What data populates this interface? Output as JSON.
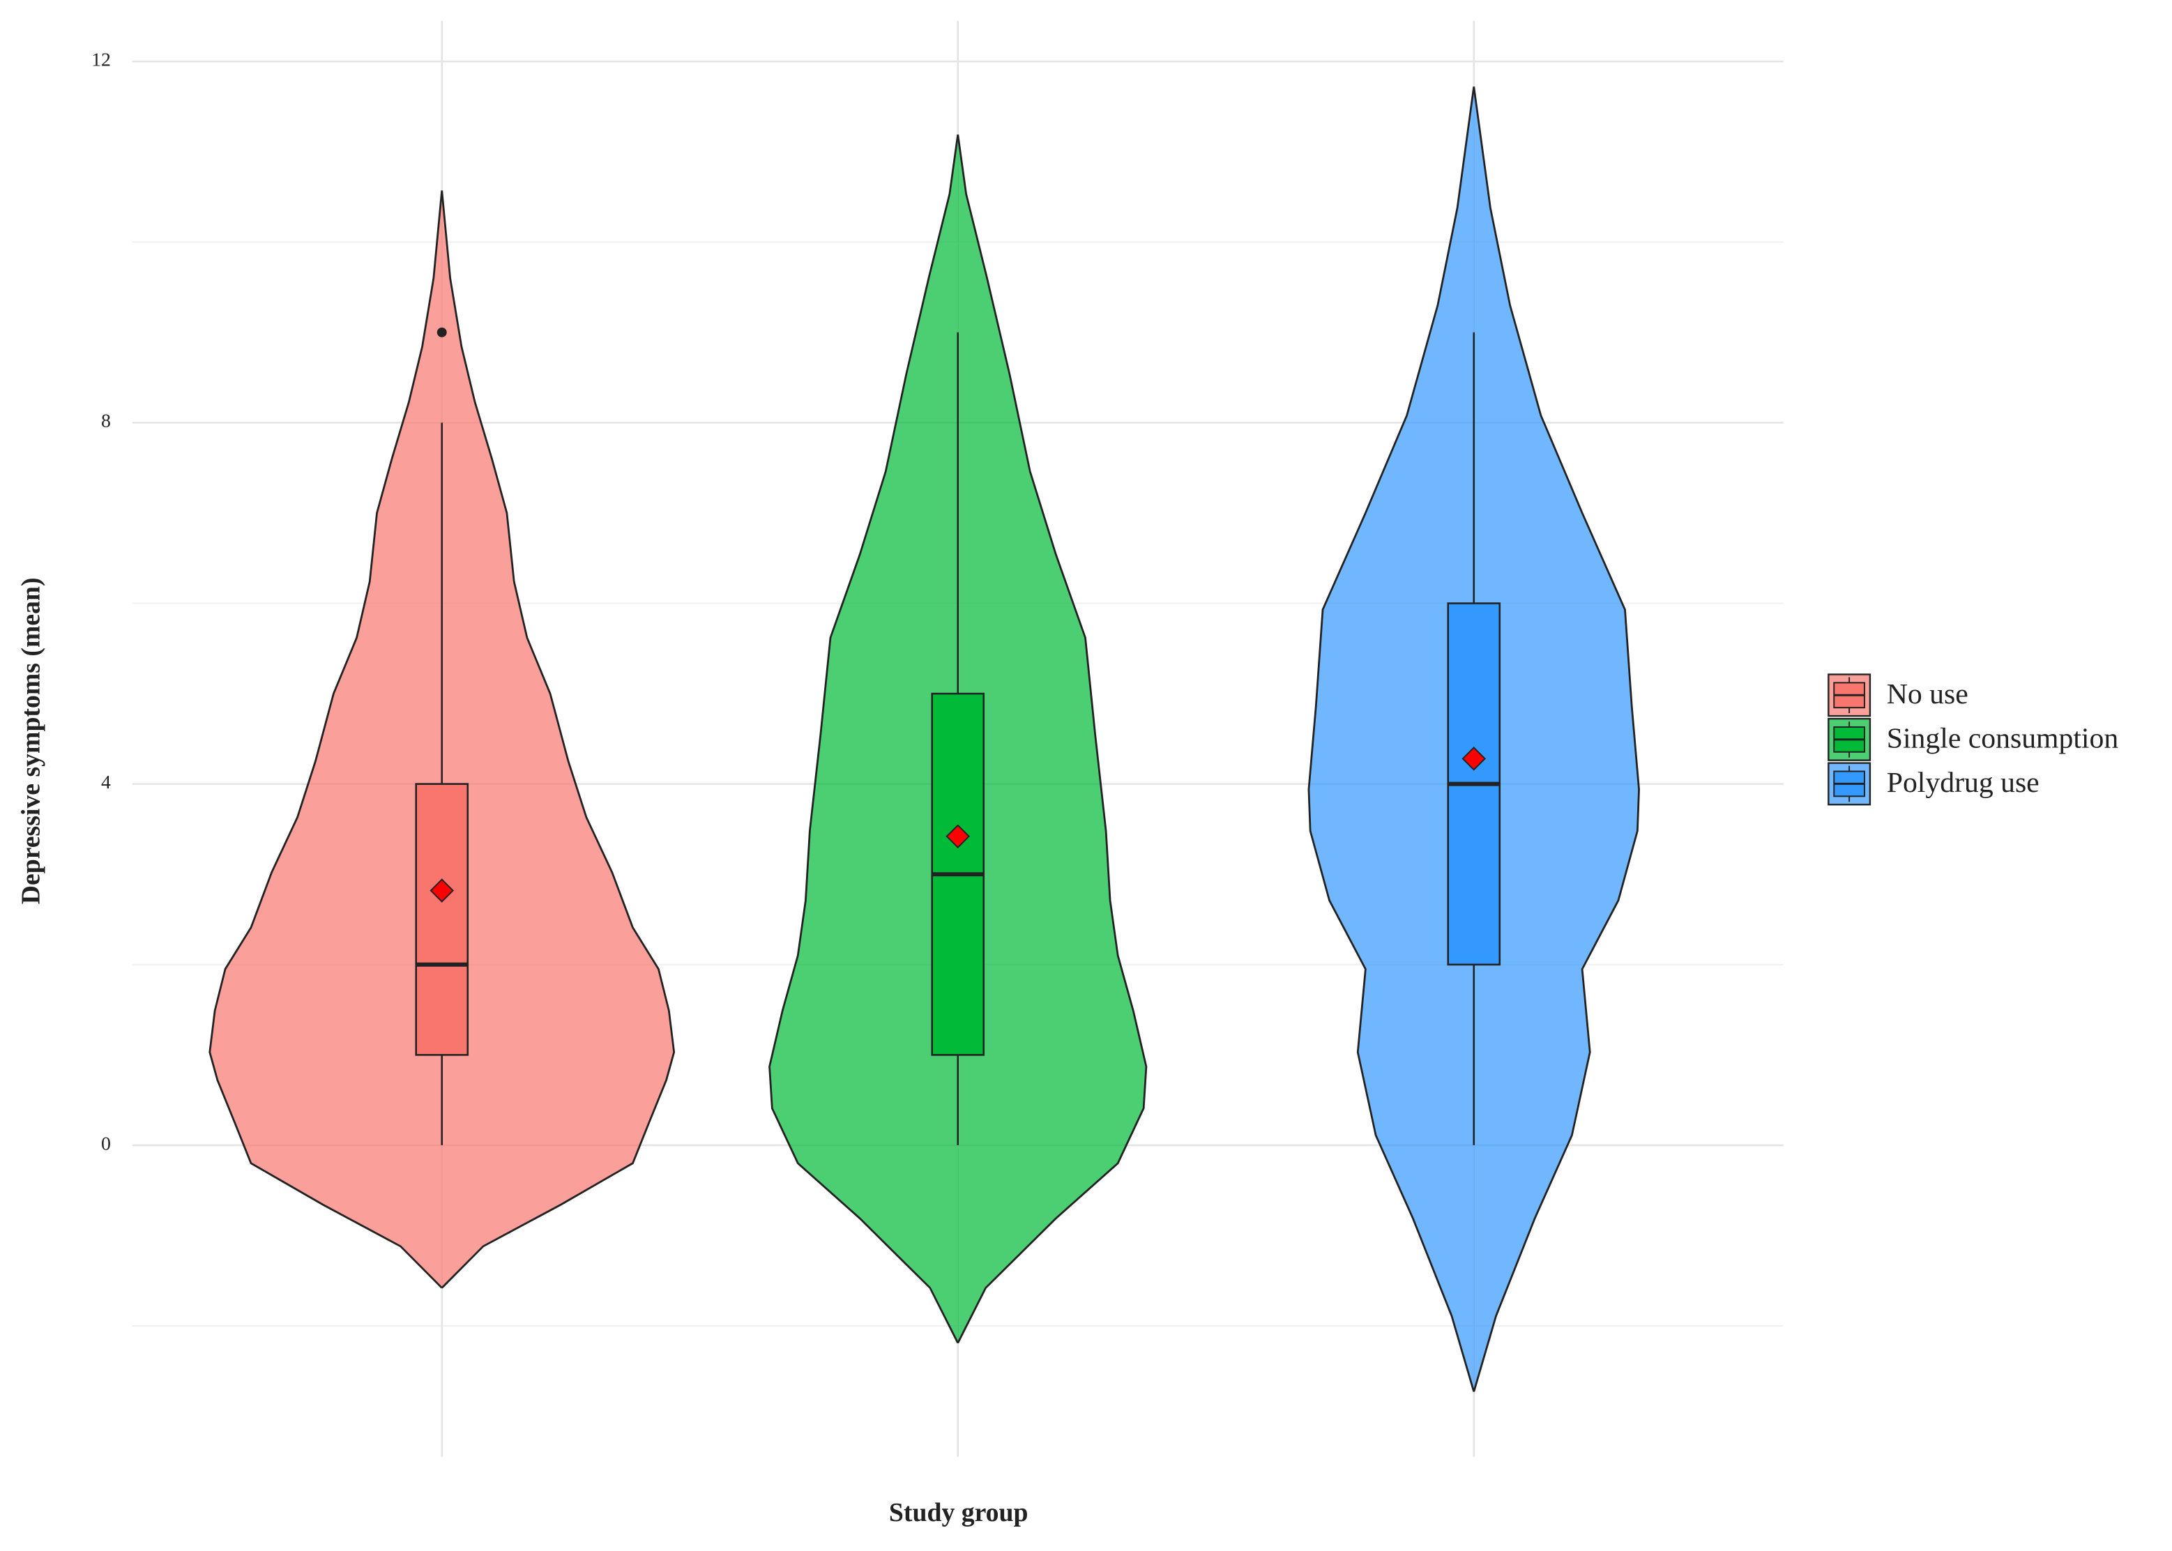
{
  "chart_data": {
    "type": "violin",
    "x_label": "Study group",
    "y_label": "Depressive symptoms (mean)",
    "ylim": [
      -3.45,
      12.45
    ],
    "yticks": [
      0,
      4,
      8,
      12
    ],
    "minor_yticks": [
      -2,
      2,
      6,
      10
    ],
    "grid": true,
    "legend": "right",
    "violin_alpha": 0.7,
    "series": [
      {
        "name": "No use",
        "color": "#f8766d",
        "violin": {
          "y": [
            -1.58,
            -1.12,
            -0.66,
            -0.2,
            0.23,
            0.72,
            1.03,
            1.49,
            1.95,
            2.41,
            3.02,
            3.63,
            4.25,
            5.0,
            5.62,
            6.24,
            7.0,
            7.6,
            8.23,
            8.84,
            9.6,
            10.57
          ],
          "width": [
            0,
            0.08,
            0.23,
            0.37,
            0.4,
            0.435,
            0.45,
            0.44,
            0.42,
            0.37,
            0.33,
            0.28,
            0.245,
            0.21,
            0.165,
            0.14,
            0.126,
            0.097,
            0.064,
            0.038,
            0.016,
            0
          ]
        },
        "box": {
          "min": 0,
          "q1": 1,
          "median": 2,
          "q3": 4,
          "max": 8
        },
        "outliers": [
          9
        ],
        "mean": 2.82
      },
      {
        "name": "Single consumption",
        "color": "#00ba38",
        "violin": {
          "y": [
            -2.19,
            -1.58,
            -0.81,
            -0.2,
            0.41,
            0.87,
            1.49,
            2.1,
            2.71,
            3.48,
            4.55,
            5.62,
            6.54,
            7.46,
            8.54,
            9.61,
            10.53,
            11.19
          ],
          "width": [
            0,
            0.054,
            0.19,
            0.31,
            0.36,
            0.365,
            0.34,
            0.31,
            0.295,
            0.287,
            0.266,
            0.247,
            0.19,
            0.14,
            0.1,
            0.056,
            0.016,
            0
          ]
        },
        "box": {
          "min": 0,
          "q1": 1,
          "median": 3,
          "q3": 5,
          "max": 9
        },
        "outliers": [],
        "mean": 3.42
      },
      {
        "name": "Polydrug use",
        "color": "#3399ff",
        "violin": {
          "y": [
            -2.73,
            -1.89,
            -0.81,
            0.11,
            1.03,
            1.95,
            2.71,
            3.48,
            3.94,
            4.86,
            5.93,
            7.0,
            8.08,
            9.3,
            10.38,
            11.72
          ],
          "width": [
            0,
            0.043,
            0.118,
            0.19,
            0.225,
            0.21,
            0.28,
            0.317,
            0.32,
            0.306,
            0.293,
            0.21,
            0.13,
            0.07,
            0.032,
            0
          ]
        },
        "box": {
          "min": 0,
          "q1": 2,
          "median": 4,
          "q3": 6,
          "max": 9
        },
        "outliers": [],
        "mean": 4.28
      }
    ]
  }
}
